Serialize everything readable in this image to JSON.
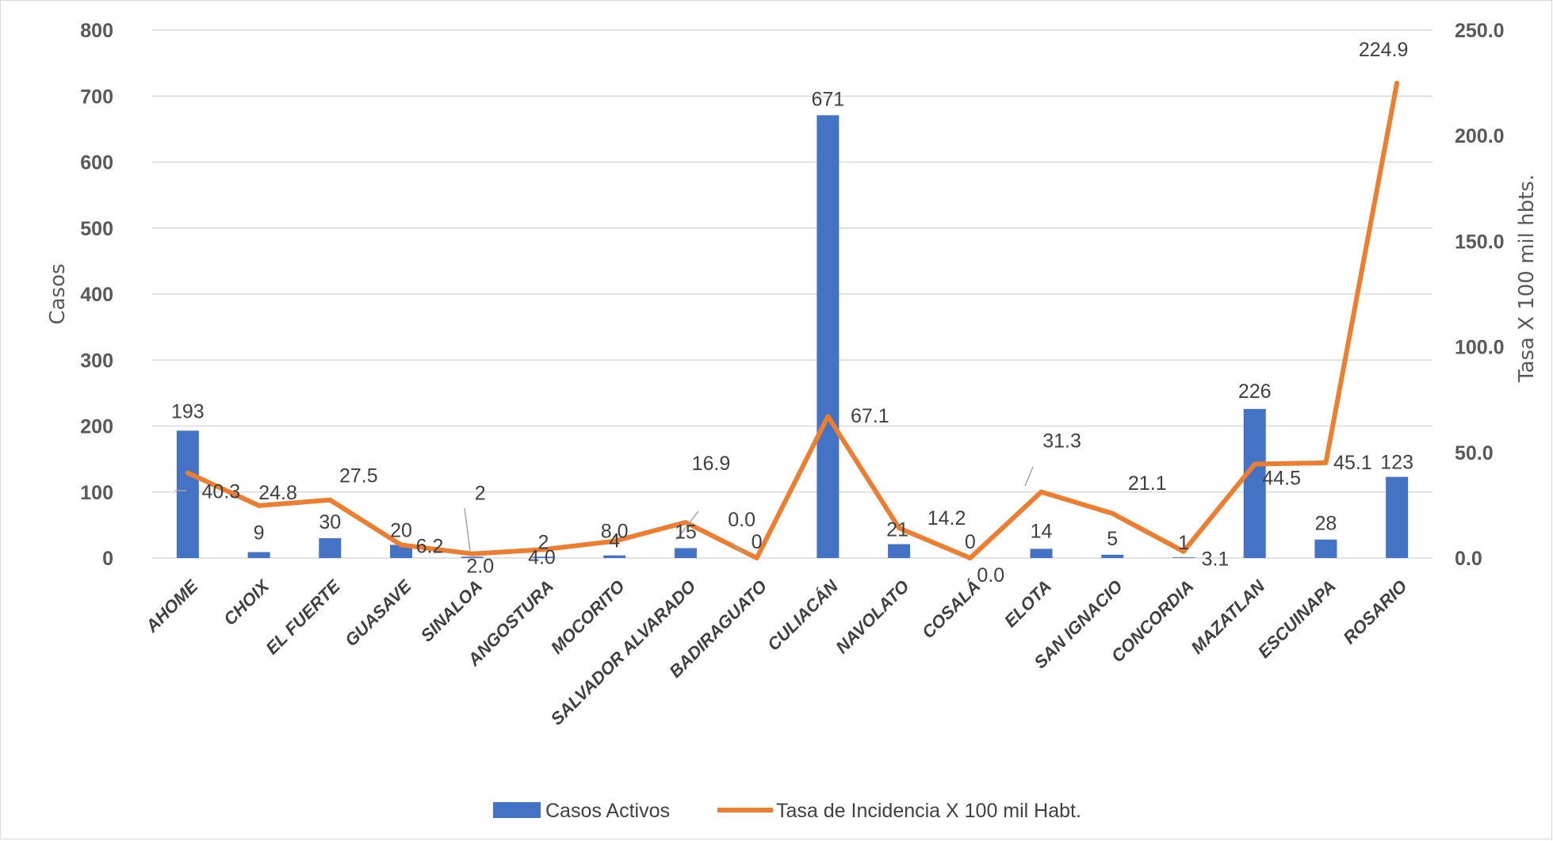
{
  "chart_data": {
    "type": "bar",
    "categories": [
      "AHOME",
      "CHOIX",
      "EL FUERTE",
      "GUASAVE",
      "SINALOA",
      "ANGOSTURA",
      "MOCORITO",
      "SALVADOR ALVARADO",
      "BADIRAGUATO",
      "CULIACÁN",
      "NAVOLATO",
      "COSALÁ",
      "ELOTA",
      "SAN IGNACIO",
      "CONCORDIA",
      "MAZATLAN",
      "ESCUINAPA",
      "ROSARIO"
    ],
    "series": [
      {
        "name": "Casos Activos",
        "type": "bar",
        "axis": "left",
        "color": "#4472c4",
        "values": [
          193,
          9,
          30,
          20,
          2,
          2,
          4,
          15,
          0,
          671,
          21,
          0,
          14,
          5,
          1,
          226,
          28,
          123
        ],
        "labels": [
          "193",
          "9",
          "30",
          "20",
          "2",
          "2",
          "4",
          "15",
          "0",
          "671",
          "21",
          "0",
          "14",
          "5",
          "1",
          "226",
          "28",
          "123"
        ]
      },
      {
        "name": "Tasa de Incidencia X 100 mil Habt.",
        "type": "line",
        "axis": "right",
        "color": "#ed7d31",
        "values": [
          40.3,
          24.8,
          27.5,
          6.2,
          2.0,
          4.0,
          8.0,
          16.9,
          0.0,
          67.1,
          14.2,
          0.0,
          31.3,
          21.1,
          3.1,
          44.5,
          45.1,
          224.9
        ],
        "labels": [
          "40.3",
          "24.8",
          "27.5",
          "6.2",
          "2.0",
          "4.0",
          "8.0",
          "16.9",
          "0.0",
          "67.1",
          "14.2",
          "0.0",
          "31.3",
          "21.1",
          "3.1",
          "44.5",
          "45.1",
          "224.9"
        ]
      }
    ],
    "ylabel": "Casos",
    "y2label": "Tasa X 100 mil hbts.",
    "ylim": [
      0,
      800
    ],
    "yticks": [
      "0",
      "100",
      "200",
      "300",
      "400",
      "500",
      "600",
      "700",
      "800"
    ],
    "y2lim": [
      0,
      250
    ],
    "y2ticks": [
      "0.0",
      "50.0",
      "100.0",
      "150.0",
      "200.0",
      "250.0"
    ],
    "grid": true,
    "legend_position": "bottom"
  },
  "colors": {
    "bar": "#4472c4",
    "line": "#ed7d31",
    "grid": "#d9d9d9"
  }
}
